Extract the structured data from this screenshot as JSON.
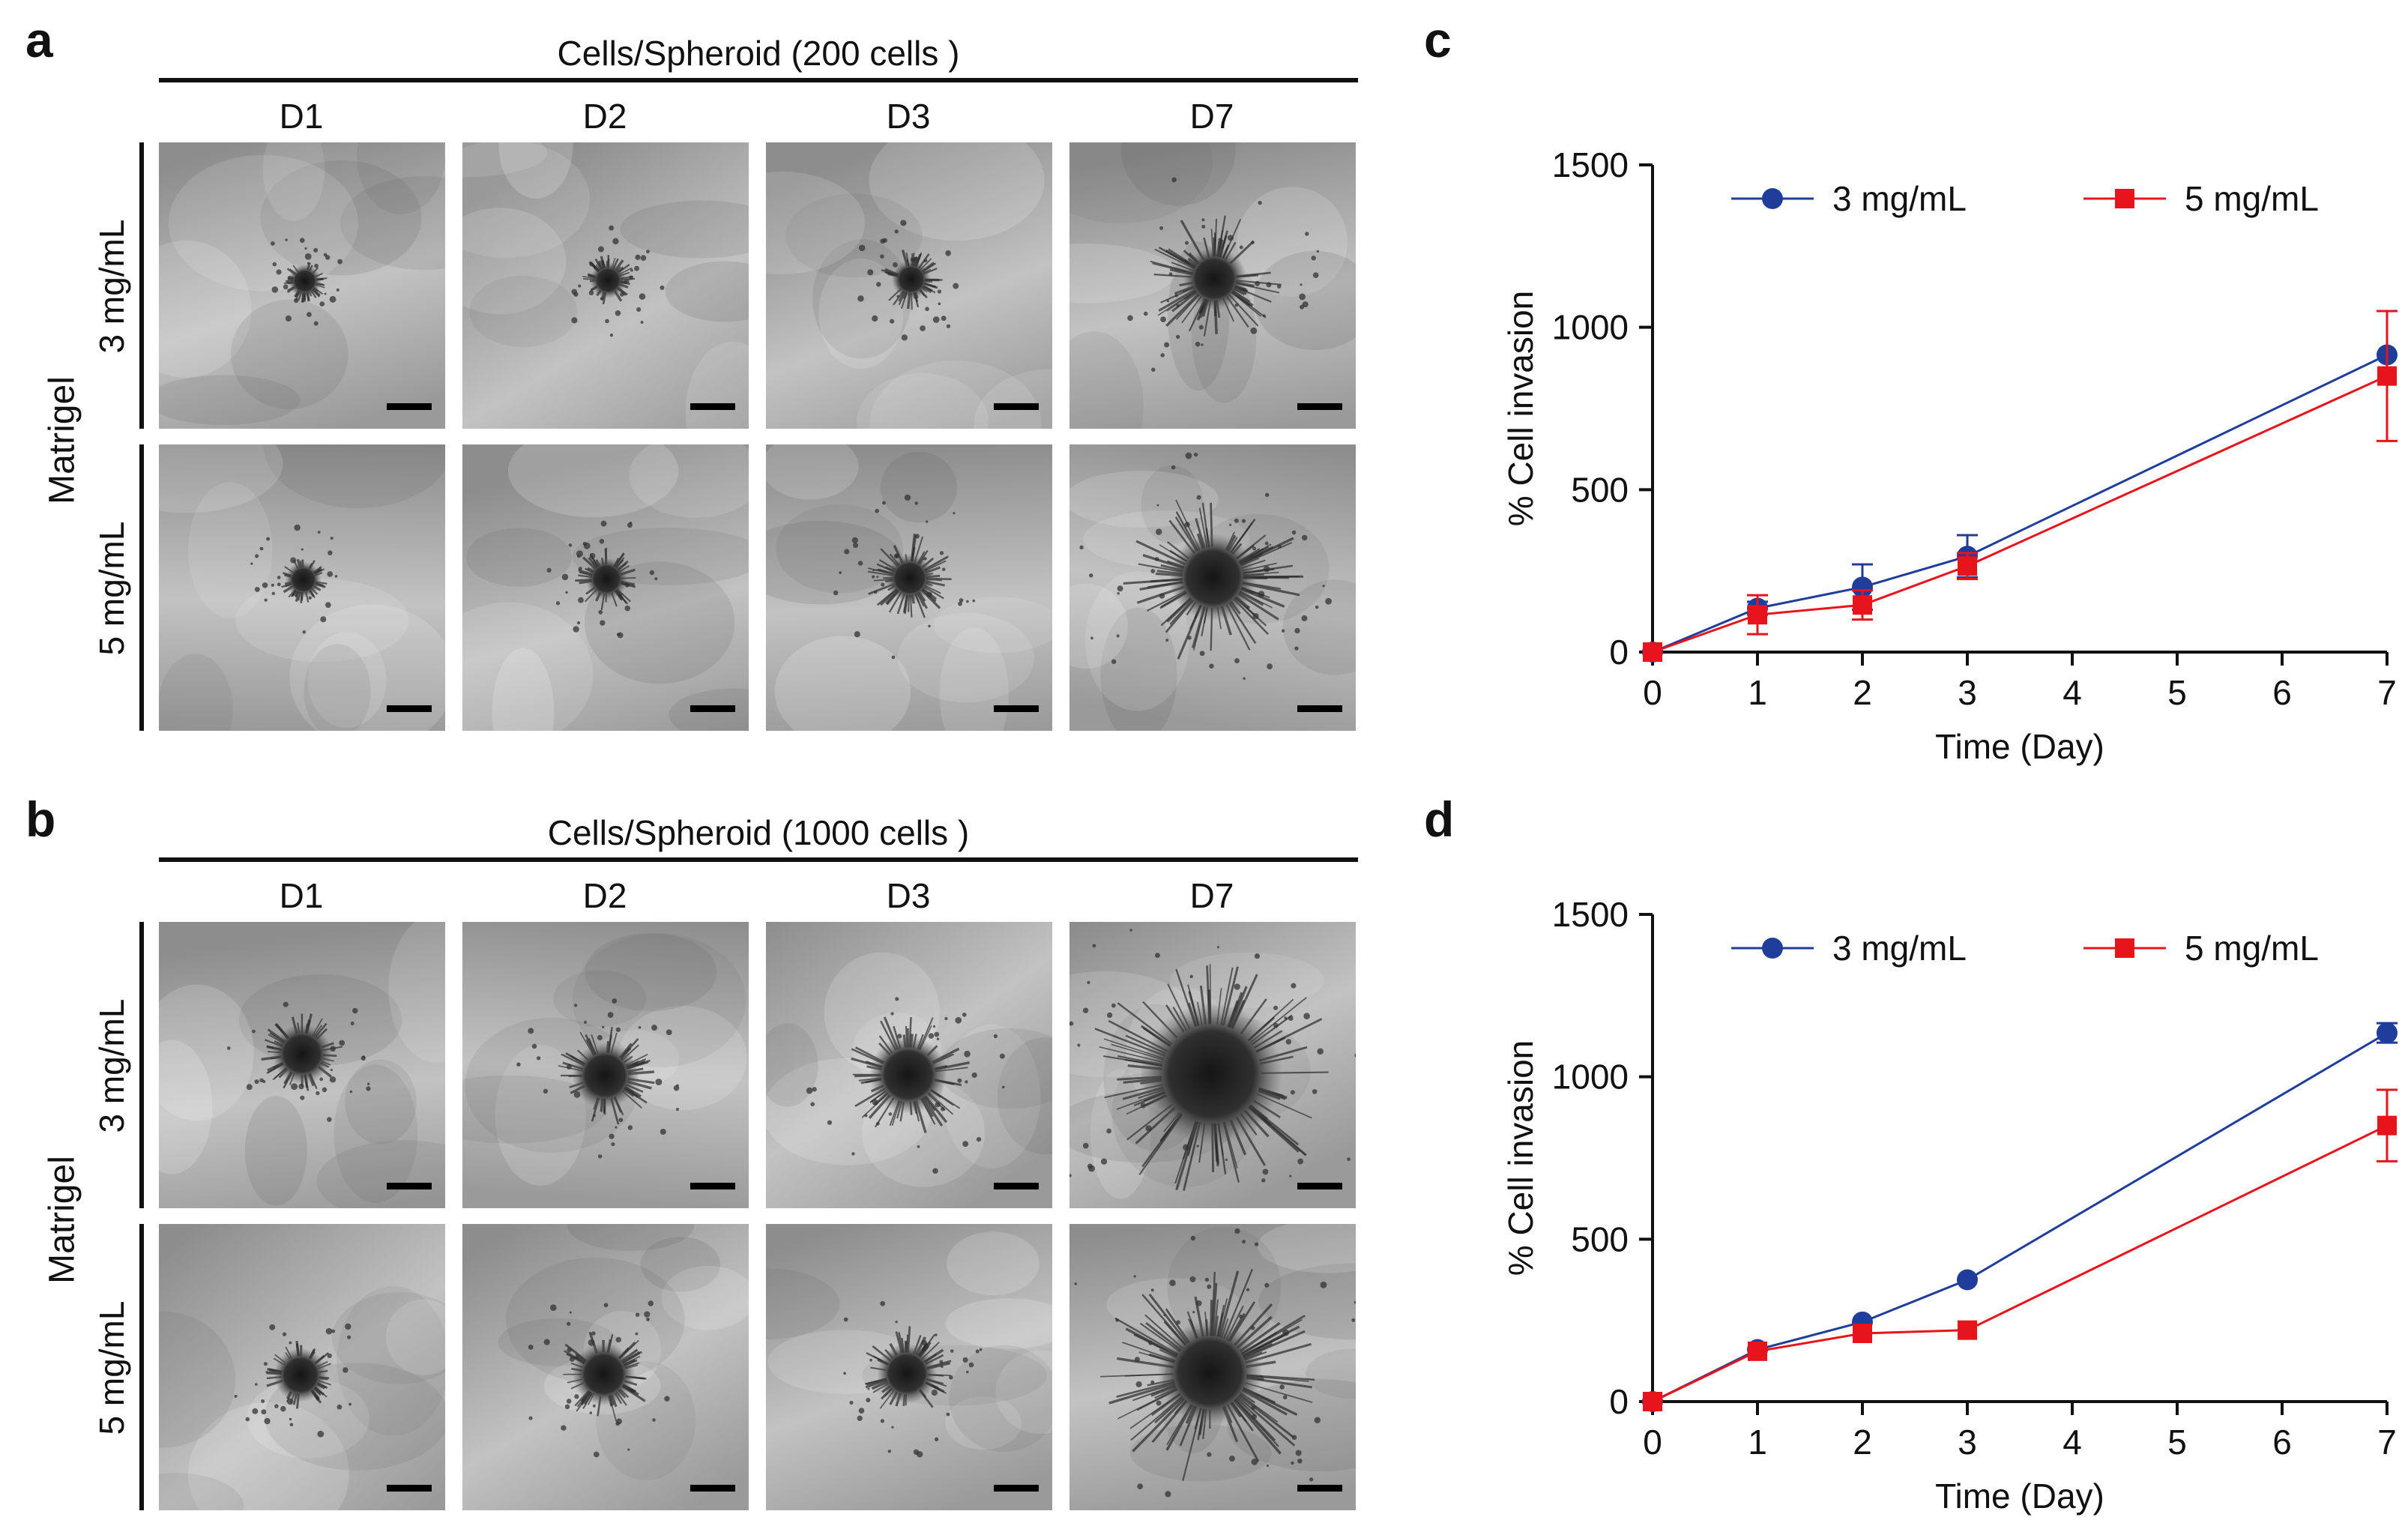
{
  "figure": {
    "panels": {
      "a": {
        "letter": "a",
        "cells_title": "Cells/Spheroid (200 cells )",
        "group_label": "Matrigel",
        "days": [
          "D1",
          "D2",
          "D3",
          "D7"
        ],
        "rows": [
          "3 mg/mL",
          "5 mg/mL"
        ]
      },
      "b": {
        "letter": "b",
        "cells_title": "Cells/Spheroid (1000 cells )",
        "group_label": "Matrigel",
        "days": [
          "D1",
          "D2",
          "D3",
          "D7"
        ],
        "rows": [
          "3 mg/mL",
          "5 mg/mL"
        ]
      },
      "c": {
        "letter": "c"
      },
      "d": {
        "letter": "d"
      }
    }
  },
  "colors": {
    "series_blue": "#1f3d9b",
    "series_red": "#e8141c"
  },
  "chart_data": [
    {
      "id": "c",
      "type": "line",
      "xlabel": "Time (Day)",
      "ylabel": "% Cell invasion",
      "xlim": [
        0,
        7
      ],
      "ylim": [
        0,
        1500
      ],
      "xticks": [
        0,
        1,
        2,
        3,
        4,
        5,
        6,
        7
      ],
      "yticks": [
        0,
        500,
        1000,
        1500
      ],
      "legend": "top",
      "series": [
        {
          "name": "3 mg/mL",
          "marker": "circle",
          "color": "#1f3d9b",
          "x": [
            0,
            1,
            2,
            3,
            7
          ],
          "y": [
            0,
            135,
            200,
            295,
            915
          ],
          "err": [
            0,
            20,
            70,
            65,
            0
          ]
        },
        {
          "name": "5 mg/mL",
          "marker": "square",
          "color": "#e8141c",
          "x": [
            0,
            1,
            2,
            3,
            7
          ],
          "y": [
            0,
            115,
            145,
            265,
            850
          ],
          "err": [
            0,
            60,
            45,
            40,
            200
          ]
        }
      ]
    },
    {
      "id": "d",
      "type": "line",
      "xlabel": "Time (Day)",
      "ylabel": "% Cell invasion",
      "xlim": [
        0,
        7
      ],
      "ylim": [
        0,
        1500
      ],
      "xticks": [
        0,
        1,
        2,
        3,
        4,
        5,
        6,
        7
      ],
      "yticks": [
        0,
        500,
        1000,
        1500
      ],
      "legend": "top",
      "series": [
        {
          "name": "3 mg/mL",
          "marker": "circle",
          "color": "#1f3d9b",
          "x": [
            0,
            1,
            2,
            3,
            7
          ],
          "y": [
            0,
            160,
            245,
            375,
            1135
          ],
          "err": [
            0,
            0,
            0,
            0,
            30
          ]
        },
        {
          "name": "5 mg/mL",
          "marker": "square",
          "color": "#e8141c",
          "x": [
            0,
            1,
            2,
            3,
            7
          ],
          "y": [
            0,
            155,
            210,
            220,
            850
          ],
          "err": [
            0,
            0,
            0,
            0,
            110
          ]
        }
      ]
    }
  ]
}
